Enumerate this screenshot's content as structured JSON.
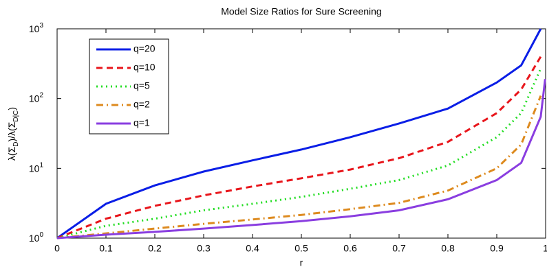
{
  "chart_data": {
    "type": "line",
    "title": "Model Size Ratios for Sure Screening",
    "xlabel": "r",
    "ylabel": [
      "λ(Σ",
      "D",
      ")/λ(Σ",
      "D|C",
      ")"
    ],
    "x": [
      0,
      0.1,
      0.2,
      0.3,
      0.4,
      0.5,
      0.6,
      0.7,
      0.8,
      0.9,
      0.95,
      0.99,
      0.999
    ],
    "series": [
      {
        "name": "q=20",
        "color": "#0a1ee6",
        "style": "solid",
        "values": [
          1,
          3.1,
          5.7,
          9,
          13,
          18.6,
          28,
          44,
          72,
          170,
          300,
          1000,
          null
        ]
      },
      {
        "name": "q=10",
        "color": "#e8151b",
        "style": "dashed",
        "values": [
          1,
          1.9,
          2.9,
          4.1,
          5.5,
          7.2,
          9.6,
          14,
          24,
          62,
          135,
          400,
          null
        ]
      },
      {
        "name": "q=5",
        "color": "#22dd22",
        "style": "dotted",
        "values": [
          1,
          1.5,
          1.9,
          2.5,
          3.1,
          3.9,
          5.1,
          6.8,
          11,
          28,
          62,
          270,
          null
        ]
      },
      {
        "name": "q=2",
        "color": "#dd8a1e",
        "style": "dashdot",
        "values": [
          1,
          1.17,
          1.37,
          1.6,
          1.85,
          2.15,
          2.6,
          3.2,
          4.8,
          10,
          22,
          110,
          null
        ]
      },
      {
        "name": "q=1",
        "color": "#8a3ee0",
        "style": "solid",
        "values": [
          1,
          1.12,
          1.23,
          1.37,
          1.54,
          1.75,
          2.05,
          2.5,
          3.6,
          6.8,
          12,
          55,
          190
        ]
      }
    ],
    "xlim": [
      0,
      1
    ],
    "ylim": [
      1,
      1000
    ],
    "log_y": true,
    "xticks": [
      0,
      0.1,
      0.2,
      0.3,
      0.4,
      0.5,
      0.6,
      0.7,
      0.8,
      0.9,
      1
    ],
    "yticks": [
      {
        "value": 1,
        "label": "10",
        "exponent": "0"
      },
      {
        "value": 10,
        "label": "10",
        "exponent": "1"
      },
      {
        "value": 100,
        "label": "10",
        "exponent": "2"
      },
      {
        "value": 1000,
        "label": "10",
        "exponent": "3"
      }
    ],
    "grid": false,
    "legend": "upper-left"
  }
}
